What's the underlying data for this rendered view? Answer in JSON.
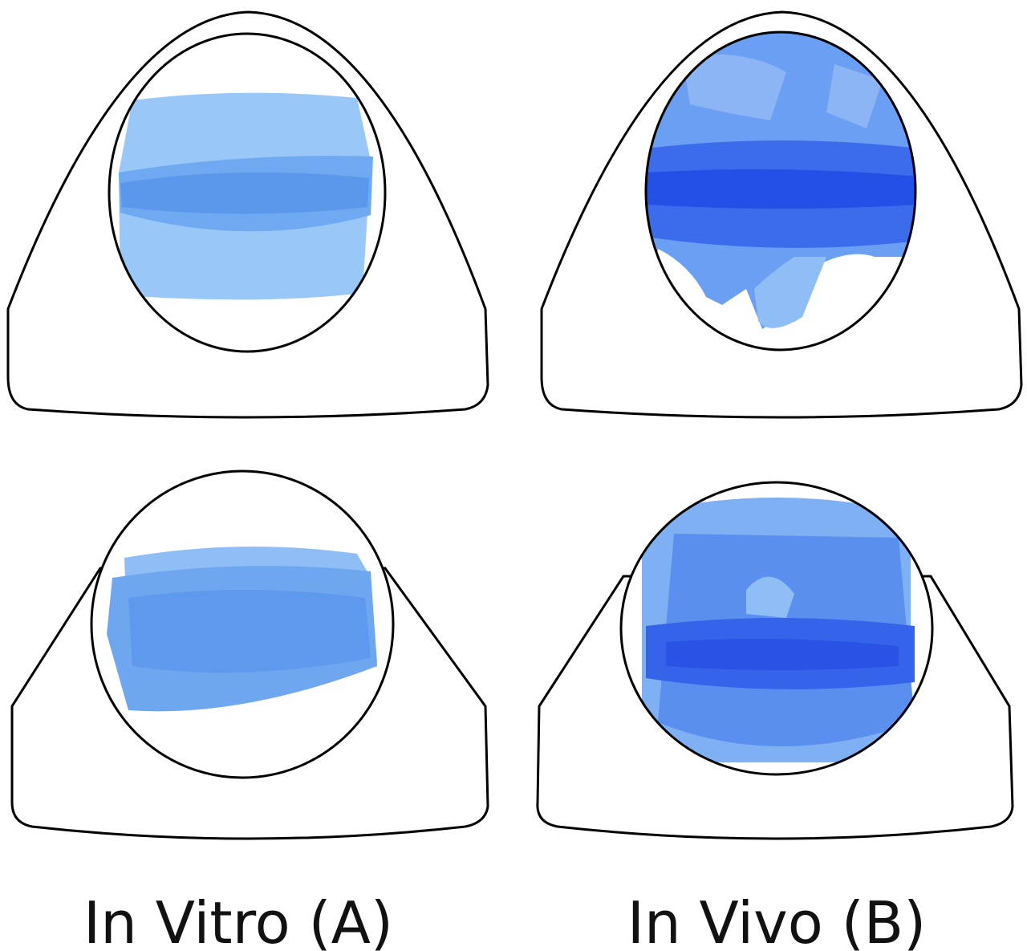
{
  "labels": [
    "In Vitro (A)",
    "In Vivo (B)"
  ]
}
